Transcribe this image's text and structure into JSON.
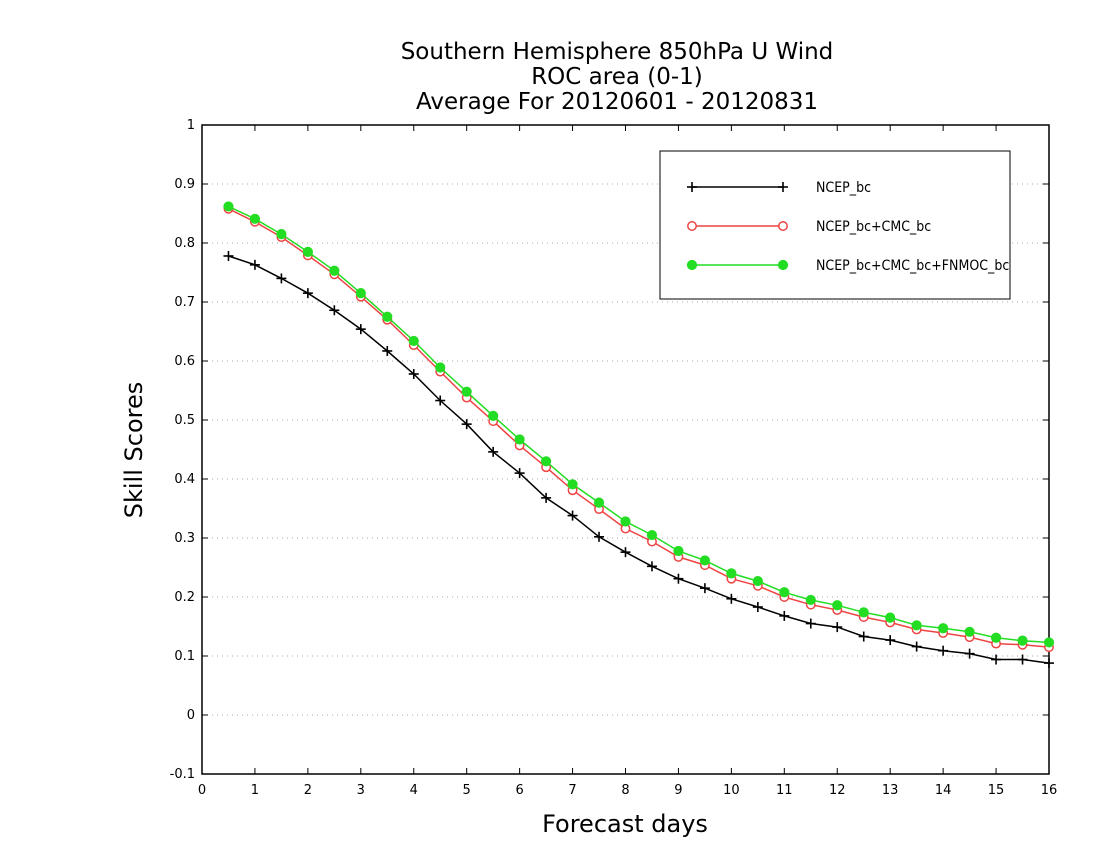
{
  "chart_data": {
    "type": "line",
    "title_lines": [
      "Southern Hemisphere 850hPa U Wind",
      "ROC area (0-1)",
      "Average For 20120601 - 20120831"
    ],
    "xlabel": "Forecast days",
    "ylabel": "Skill Scores",
    "xlim": [
      0,
      16
    ],
    "ylim": [
      -0.1,
      1
    ],
    "xticks": [
      "0",
      "1",
      "2",
      "3",
      "4",
      "5",
      "6",
      "7",
      "8",
      "9",
      "10",
      "11",
      "12",
      "13",
      "14",
      "15",
      "16"
    ],
    "yticks": [
      "-0.1",
      "0",
      "0.1",
      "0.2",
      "0.3",
      "0.4",
      "0.5",
      "0.6",
      "0.7",
      "0.8",
      "0.9",
      "1"
    ],
    "grid": "horizontal dotted",
    "legend_position": "top-right",
    "x": [
      0.5,
      1,
      1.5,
      2,
      2.5,
      3,
      3.5,
      4,
      4.5,
      5,
      5.5,
      6,
      6.5,
      7,
      7.5,
      8,
      8.5,
      9,
      9.5,
      10,
      10.5,
      11,
      11.5,
      12,
      12.5,
      13,
      13.5,
      14,
      14.5,
      15,
      15.5,
      16
    ],
    "series": [
      {
        "name": "NCEP_bc",
        "color": "#000000",
        "marker": "plus",
        "values": [
          0.778,
          0.763,
          0.74,
          0.715,
          0.686,
          0.654,
          0.617,
          0.578,
          0.533,
          0.493,
          0.446,
          0.41,
          0.368,
          0.338,
          0.302,
          0.276,
          0.252,
          0.231,
          0.215,
          0.197,
          0.183,
          0.168,
          0.155,
          0.149,
          0.133,
          0.127,
          0.116,
          0.109,
          0.104,
          0.094,
          0.094,
          0.088
        ]
      },
      {
        "name": "NCEP_bc+CMC_bc",
        "color": "#ee4444",
        "marker": "open-circle",
        "values": [
          0.858,
          0.836,
          0.81,
          0.779,
          0.747,
          0.709,
          0.67,
          0.627,
          0.582,
          0.538,
          0.498,
          0.457,
          0.42,
          0.381,
          0.349,
          0.316,
          0.294,
          0.268,
          0.254,
          0.231,
          0.219,
          0.2,
          0.187,
          0.178,
          0.166,
          0.157,
          0.145,
          0.139,
          0.132,
          0.121,
          0.119,
          0.115
        ]
      },
      {
        "name": "NCEP_bc+CMC_bc+FNMOC_bc",
        "color": "#22dd22",
        "marker": "filled-circle",
        "values": [
          0.862,
          0.841,
          0.815,
          0.785,
          0.753,
          0.715,
          0.675,
          0.634,
          0.589,
          0.548,
          0.507,
          0.467,
          0.43,
          0.391,
          0.36,
          0.328,
          0.305,
          0.278,
          0.262,
          0.24,
          0.227,
          0.208,
          0.195,
          0.186,
          0.174,
          0.165,
          0.152,
          0.147,
          0.141,
          0.131,
          0.126,
          0.123
        ]
      }
    ]
  }
}
